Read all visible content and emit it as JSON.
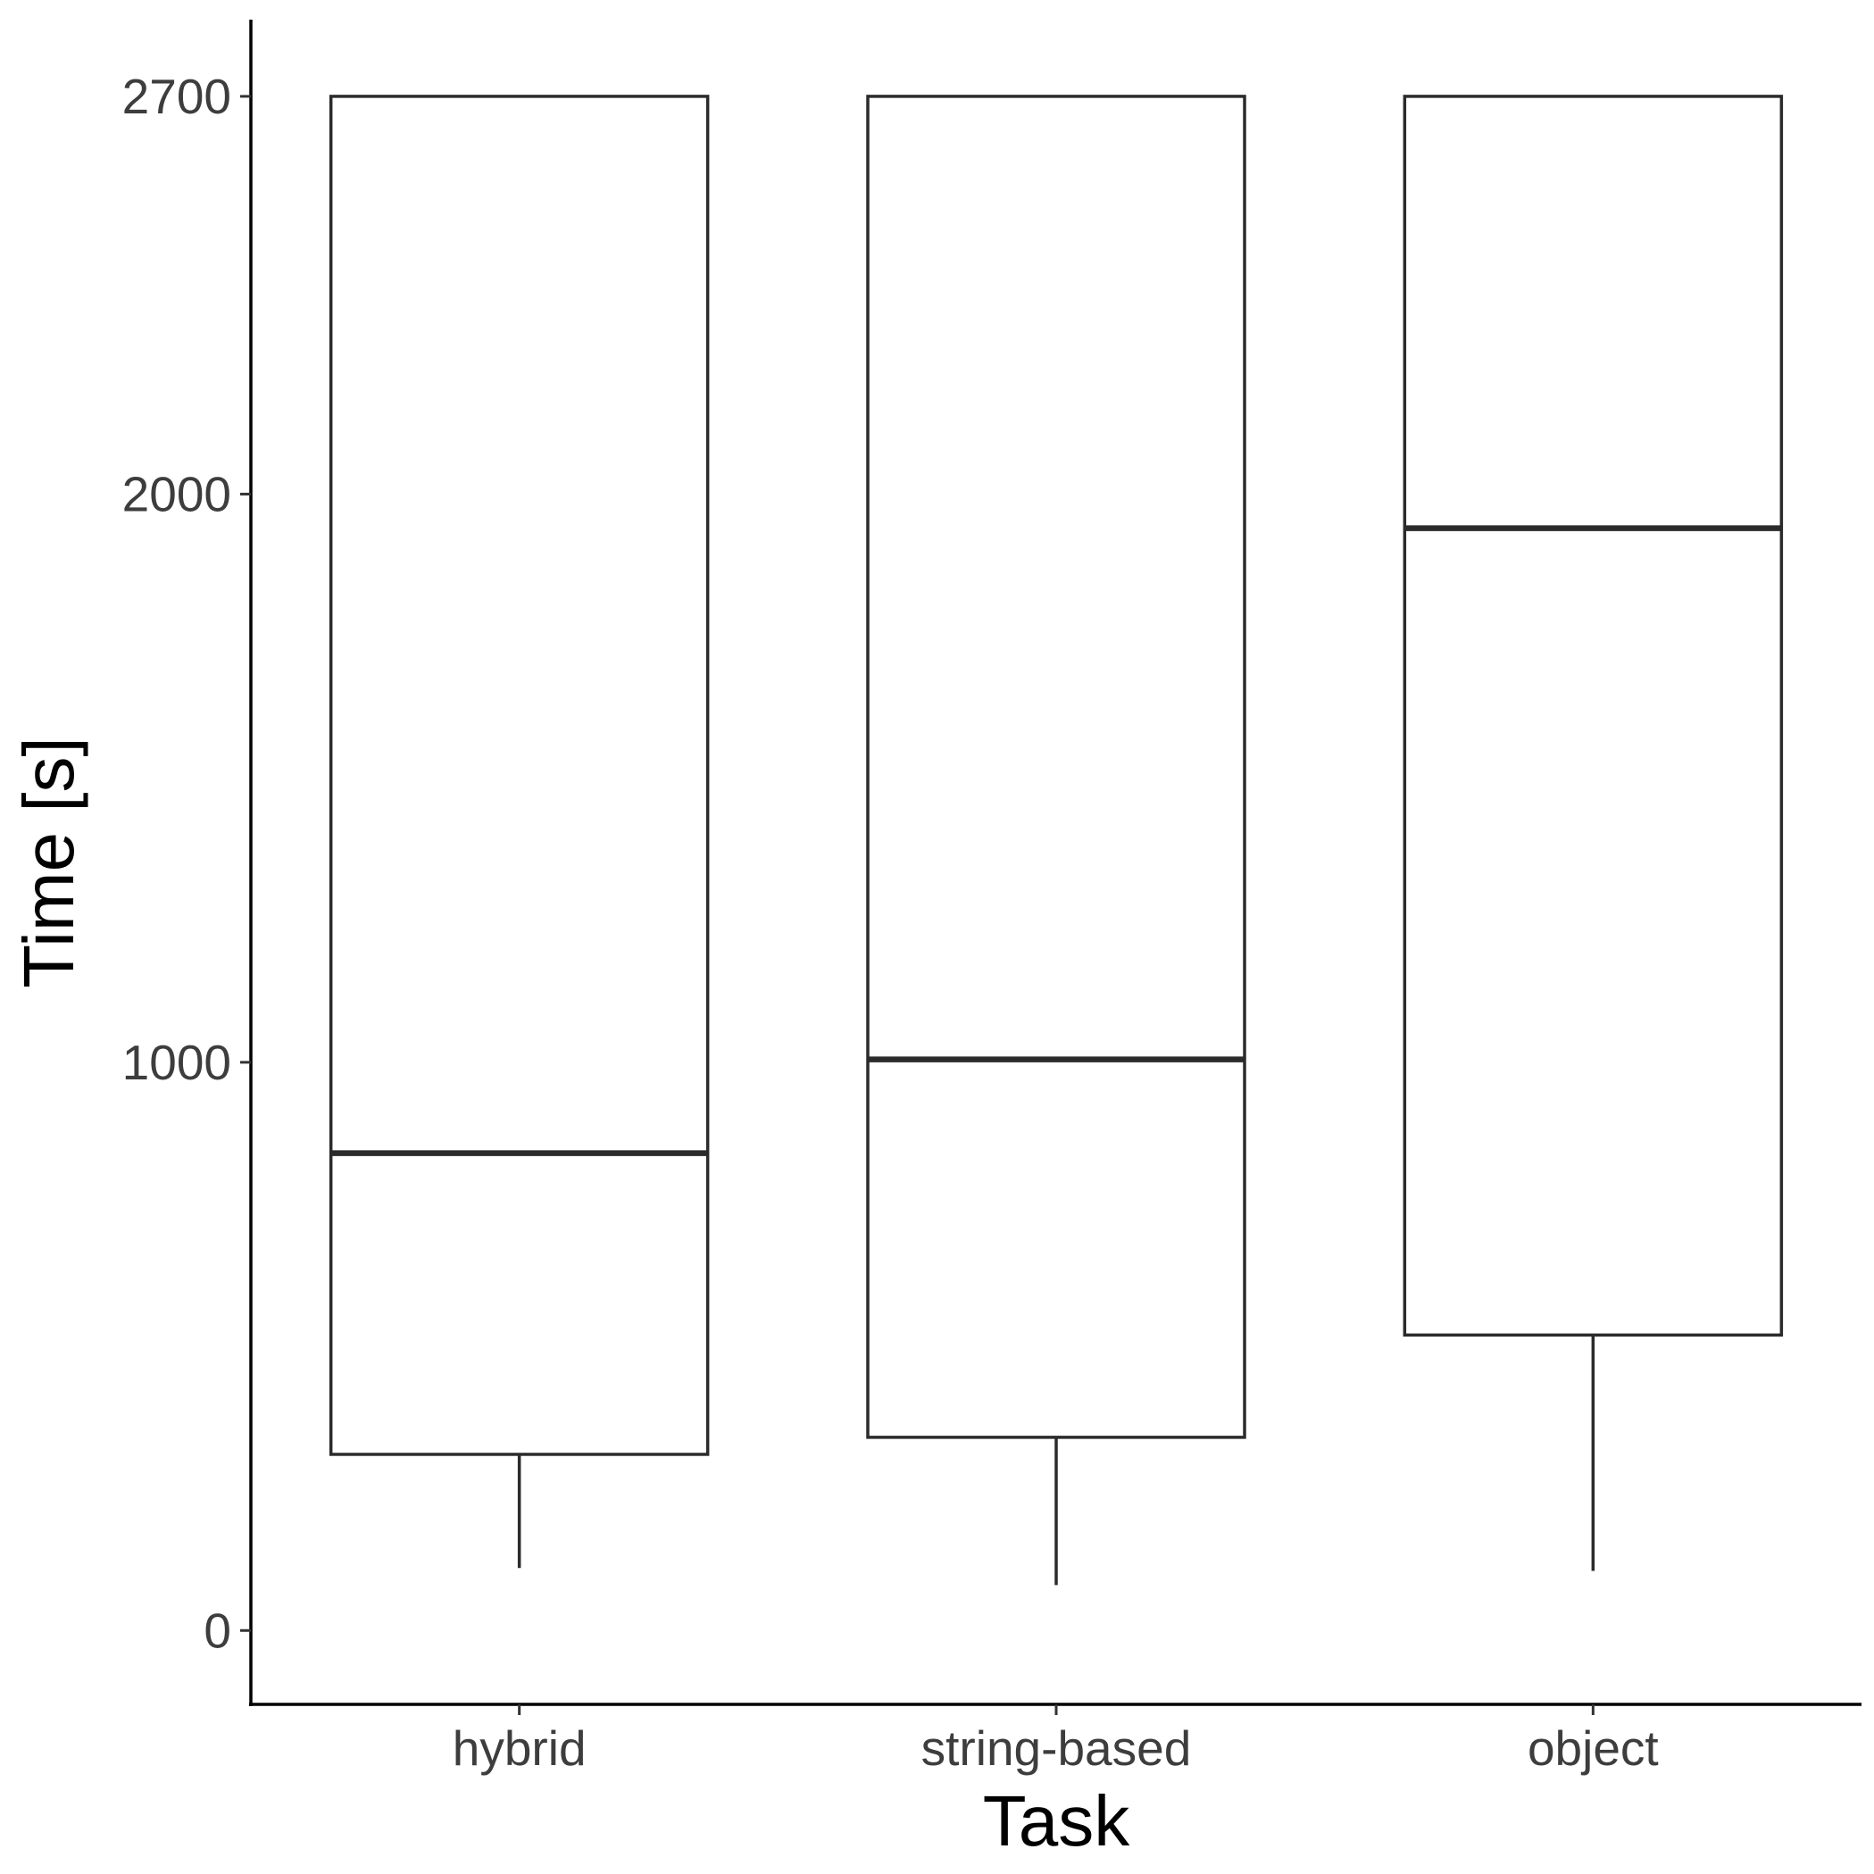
{
  "chart_data": {
    "type": "boxplot",
    "xlabel": "Task",
    "ylabel": "Time [s]",
    "ylim": [
      -130,
      2835
    ],
    "yticks": [
      0,
      1000,
      2000,
      2700
    ],
    "grid": false,
    "legend": "none",
    "categories": [
      "hybrid",
      "string-based",
      "object"
    ],
    "boxes": [
      {
        "category": "hybrid",
        "whisker_low": 110,
        "q1": 310,
        "median": 840,
        "q3": 2700,
        "whisker_high": 2700
      },
      {
        "category": "string-based",
        "whisker_low": 80,
        "q1": 340,
        "median": 1005,
        "q3": 2700,
        "whisker_high": 2700
      },
      {
        "category": "object",
        "whisker_low": 105,
        "q1": 520,
        "median": 1940,
        "q3": 2700,
        "whisker_high": 2700
      }
    ]
  }
}
